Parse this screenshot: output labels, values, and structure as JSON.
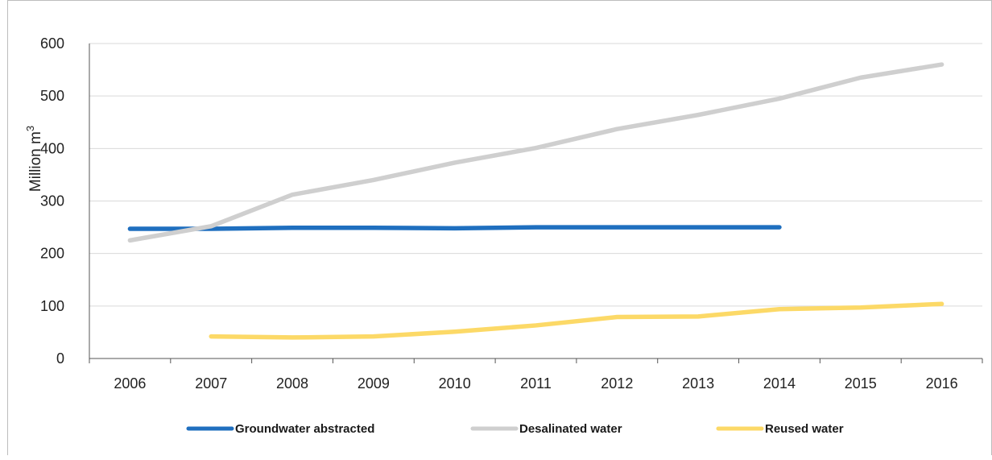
{
  "chart_data": {
    "type": "line",
    "title": "",
    "xlabel": "",
    "ylabel": "Million m",
    "ylabel_superscript": "3",
    "categories": [
      "2006",
      "2007",
      "2008",
      "2009",
      "2010",
      "2011",
      "2012",
      "2013",
      "2014",
      "2015",
      "2016"
    ],
    "ylim": [
      0,
      600
    ],
    "yticks": [
      0,
      100,
      200,
      300,
      400,
      500,
      600
    ],
    "grid": true,
    "legend_position": "bottom",
    "series": [
      {
        "name": "Groundwater abstracted",
        "color": "#1f6fbf",
        "values": [
          247,
          247,
          249,
          249,
          248,
          250,
          250,
          250,
          250,
          null,
          null
        ]
      },
      {
        "name": "Desalinated water",
        "color": "#cfcfcf",
        "values": [
          225,
          252,
          312,
          340,
          373,
          401,
          437,
          464,
          495,
          535,
          560
        ]
      },
      {
        "name": "Reused water",
        "color": "#fcd967",
        "values": [
          null,
          42,
          40,
          42,
          51,
          63,
          79,
          80,
          94,
          97,
          104
        ]
      }
    ]
  }
}
